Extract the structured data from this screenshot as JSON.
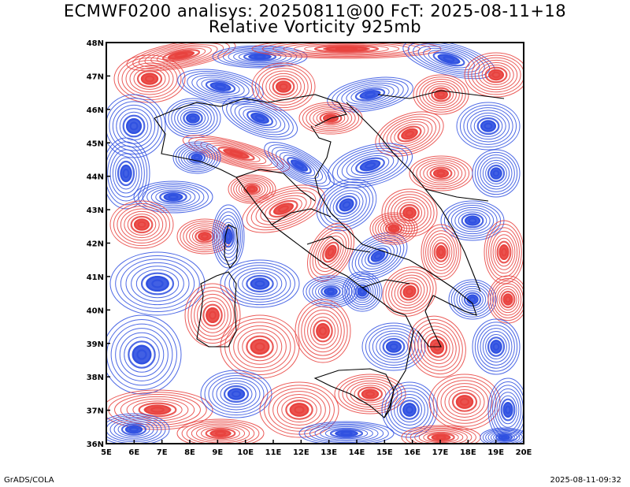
{
  "title_line1": "ECMWF0200 analisys: 20250811@00 FcT: 2025-08-11+18",
  "title_line2": "Relative Vorticity 925mb",
  "footer_left": "GrADS/COLA",
  "footer_right": "2025-08-11-09:32",
  "colors": {
    "positive": "#e8403c",
    "negative": "#2e4fe0",
    "coast": "#000000",
    "frame": "#000000"
  },
  "map": {
    "lon_labels": [
      "5E",
      "6E",
      "7E",
      "8E",
      "9E",
      "10E",
      "11E",
      "12E",
      "13E",
      "14E",
      "15E",
      "16E",
      "17E",
      "18E",
      "19E",
      "20E"
    ],
    "lat_labels": [
      "48N",
      "47N",
      "46N",
      "45N",
      "44N",
      "43N",
      "42N",
      "41N",
      "40N",
      "39N",
      "38N",
      "37N",
      "36N"
    ]
  }
}
